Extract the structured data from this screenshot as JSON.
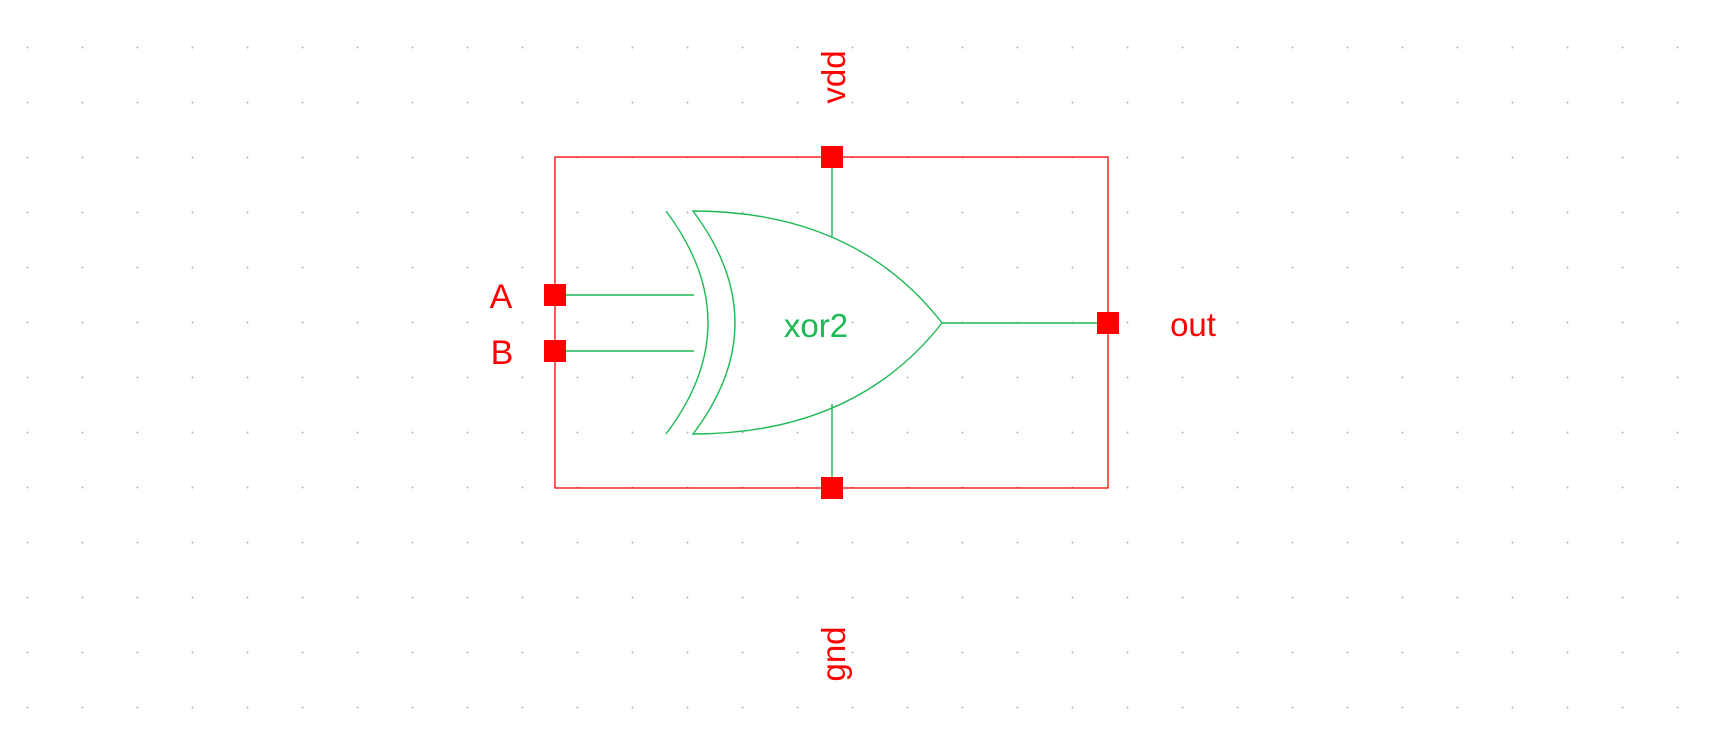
{
  "colors": {
    "boundary": "#ff0000",
    "symbol": "#1db954",
    "pin": "#ff0000",
    "grid_dot": "#b8b8b8",
    "background": "#ffffff"
  },
  "cell": {
    "name": "xor2"
  },
  "pins": {
    "a": "A",
    "b": "B",
    "out": "out",
    "vdd": "vdd",
    "gnd": "gnd"
  }
}
